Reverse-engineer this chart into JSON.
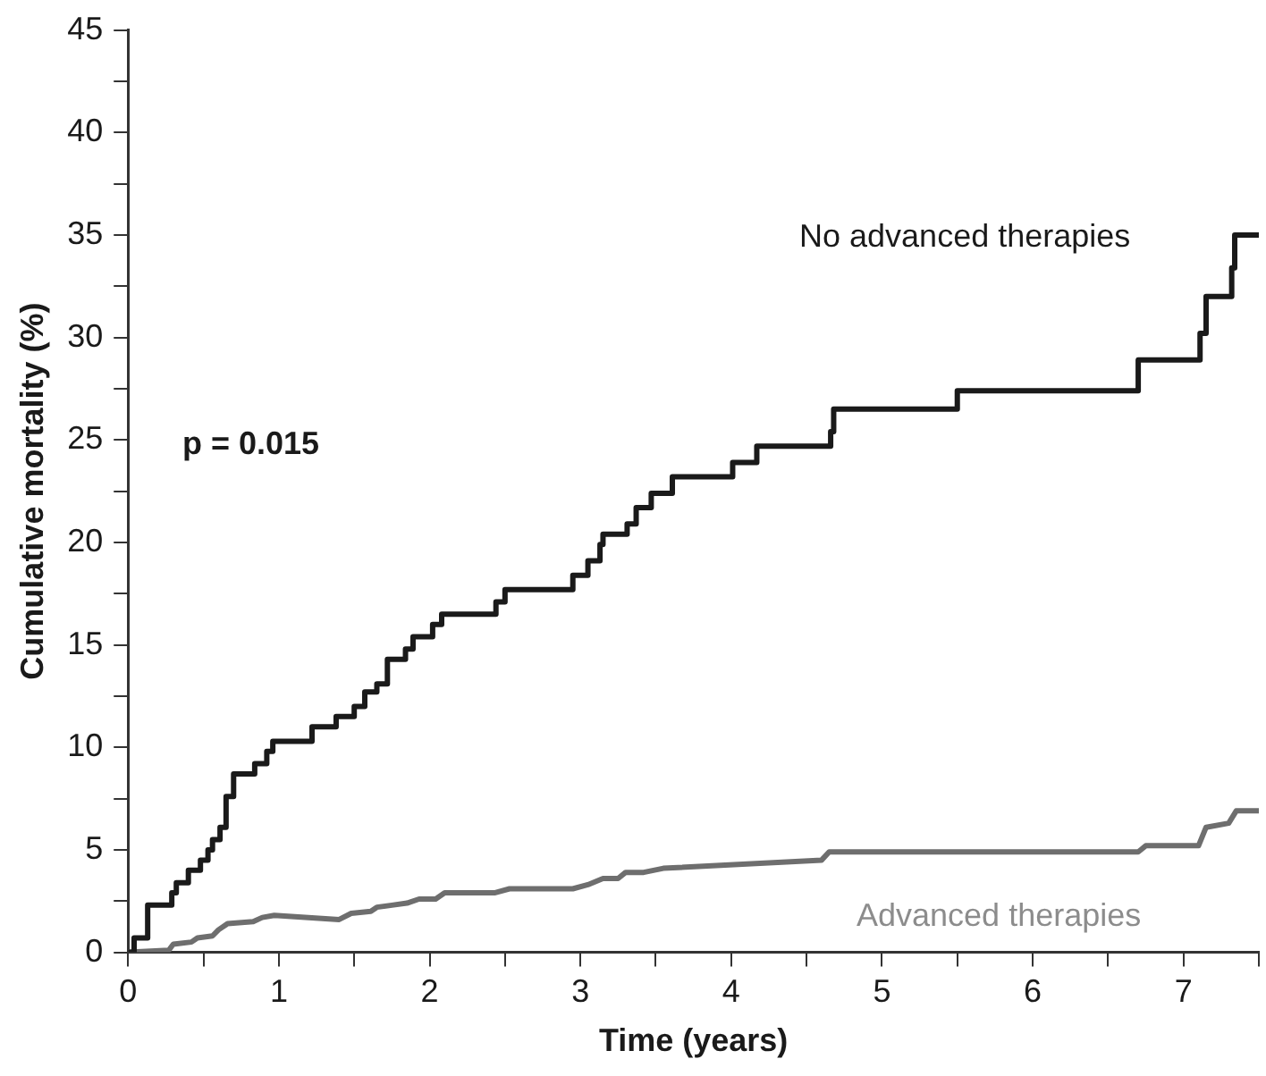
{
  "chart_data": {
    "type": "step",
    "xlabel": "Time (years)",
    "ylabel": "Cumulative mortality (%)",
    "annotations": [
      "p = 0.015"
    ],
    "xlim": [
      0,
      7.5
    ],
    "ylim": [
      0,
      45
    ],
    "xticks": [
      0,
      {
        "value": 0.5,
        "label": null
      },
      1,
      {
        "value": 1.5,
        "label": null
      },
      2,
      {
        "value": 2.5,
        "label": null
      },
      3,
      {
        "value": 3.5,
        "label": null
      },
      4,
      {
        "value": 4.5,
        "label": null
      },
      5,
      {
        "value": 5.5,
        "label": null
      },
      6,
      {
        "value": 6.5,
        "label": null
      },
      7,
      {
        "value": 7.5,
        "label": null
      }
    ],
    "yticks": [
      0,
      {
        "value": 2.5,
        "label": null
      },
      5,
      {
        "value": 7.5,
        "label": null
      },
      10,
      {
        "value": 12.5,
        "label": null
      },
      15,
      {
        "value": 17.5,
        "label": null
      },
      20,
      {
        "value": 22.5,
        "label": null
      },
      25,
      {
        "value": 27.5,
        "label": null
      },
      30,
      {
        "value": 32.5,
        "label": null
      },
      35,
      {
        "value": 37.5,
        "label": null
      },
      40,
      {
        "value": 42.5,
        "label": null
      },
      45
    ],
    "series": [
      {
        "name": "No advanced therapies",
        "color": "#1a1a1a",
        "x": [
          0,
          0.04,
          0.13,
          0.29,
          0.32,
          0.4,
          0.48,
          0.53,
          0.56,
          0.61,
          0.65,
          0.7,
          0.84,
          0.92,
          0.96,
          1.22,
          1.38,
          1.5,
          1.57,
          1.65,
          1.72,
          1.84,
          1.89,
          2.02,
          2.08,
          2.44,
          2.5,
          2.95,
          3.05,
          3.13,
          3.15,
          3.31,
          3.37,
          3.47,
          3.61,
          4.01,
          4.17,
          4.66,
          4.68,
          5.5,
          6.7,
          7.11,
          7.15,
          7.32,
          7.34,
          7.5
        ],
        "values": [
          0,
          0.7,
          2.3,
          2.9,
          3.4,
          4,
          4.5,
          5,
          5.5,
          6.1,
          7.6,
          8.7,
          9.2,
          9.8,
          10.3,
          11,
          11.5,
          12,
          12.7,
          13.1,
          14.3,
          14.8,
          15.4,
          16,
          16.5,
          17.1,
          17.7,
          18.4,
          19.1,
          19.9,
          20.4,
          20.9,
          21.7,
          22.4,
          23.2,
          23.9,
          24.7,
          25.4,
          26.5,
          27.4,
          28.9,
          30.2,
          32,
          33.4,
          35,
          35
        ]
      },
      {
        "name": "Advanced therapies",
        "type": "line",
        "color": "#6e6e6e",
        "x": [
          0,
          0.27,
          0.3,
          0.42,
          0.46,
          0.56,
          0.6,
          0.66,
          0.83,
          0.89,
          0.97,
          1.4,
          1.48,
          1.61,
          1.65,
          1.75,
          1.85,
          1.93,
          2.04,
          2.1,
          2.43,
          2.53,
          2.95,
          3.05,
          3.15,
          3.25,
          3.3,
          3.42,
          3.55,
          4.6,
          4.65,
          6.7,
          6.75,
          7.1,
          7.15,
          7.3,
          7.35,
          7.5
        ],
        "values": [
          0,
          0.1,
          0.4,
          0.5,
          0.7,
          0.8,
          1.1,
          1.4,
          1.5,
          1.7,
          1.8,
          1.6,
          1.9,
          2,
          2.2,
          2.3,
          2.4,
          2.6,
          2.6,
          2.9,
          2.9,
          3.1,
          3.1,
          3.3,
          3.6,
          3.6,
          3.9,
          3.9,
          4.1,
          4.5,
          4.9,
          4.9,
          5.2,
          5.2,
          6.1,
          6.3,
          6.9,
          6.9
        ]
      }
    ]
  }
}
